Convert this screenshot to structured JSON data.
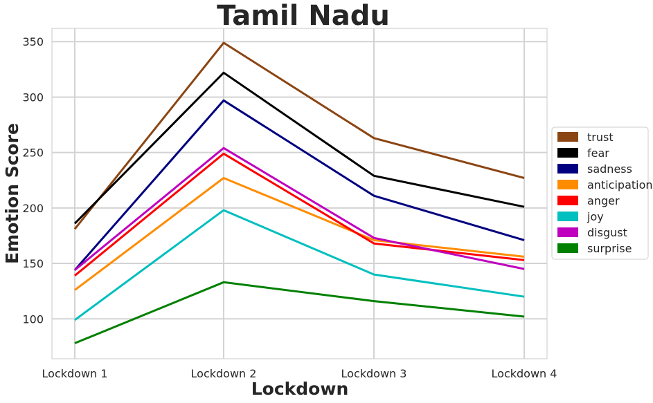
{
  "chart_data": {
    "type": "line",
    "title": "Tamil Nadu",
    "xlabel": "Lockdown",
    "ylabel": "Emotion Score",
    "categories": [
      "Lockdown 1",
      "Lockdown 2",
      "Lockdown 3",
      "Lockdown 4"
    ],
    "ylim": [
      64,
      362
    ],
    "yticks": [
      100,
      150,
      200,
      250,
      300,
      350
    ],
    "grid": true,
    "legend_position": "center-right",
    "series": [
      {
        "name": "trust",
        "color": "#8B4513",
        "values": [
          181,
          349,
          263,
          227
        ]
      },
      {
        "name": "fear",
        "color": "#000000",
        "values": [
          186,
          322,
          229,
          201
        ]
      },
      {
        "name": "sadness",
        "color": "#000080",
        "values": [
          144,
          297,
          211,
          171
        ]
      },
      {
        "name": "anticipation",
        "color": "#FF8C00",
        "values": [
          126,
          227,
          171,
          156
        ]
      },
      {
        "name": "anger",
        "color": "#FF0000",
        "values": [
          139,
          249,
          168,
          153
        ]
      },
      {
        "name": "joy",
        "color": "#00BFBF",
        "values": [
          99,
          198,
          140,
          120
        ]
      },
      {
        "name": "disgust",
        "color": "#BF00BF",
        "values": [
          144,
          254,
          173,
          145
        ]
      },
      {
        "name": "surprise",
        "color": "#008000",
        "values": [
          78,
          133,
          116,
          102
        ]
      }
    ]
  }
}
